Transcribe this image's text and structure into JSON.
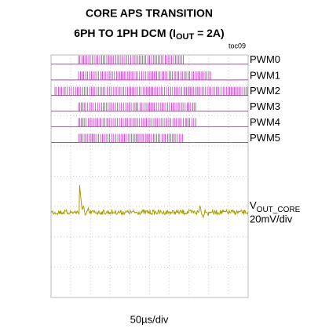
{
  "chart_data": {
    "type": "scope",
    "title": "CORE APS TRANSITION",
    "subtitle": {
      "pre": "6PH TO 1PH DCM (I",
      "sub": "OUT",
      "post": " = 2A)"
    },
    "figure_id": "toc09",
    "divisions": [
      10,
      8
    ],
    "pulse_color": "#cc33cc",
    "trace_color": "#a89f00",
    "channels": [
      {
        "name": "PWM0",
        "row": 0.15,
        "start": 1.4,
        "end": 6.72
      },
      {
        "name": "PWM1",
        "row": 0.67,
        "start": 1.4,
        "end": 8.12
      },
      {
        "name": "PWM2",
        "row": 1.18,
        "start": 0.2,
        "end": 10
      },
      {
        "name": "PWM3",
        "row": 1.7,
        "start": 1.4,
        "end": 7.4
      },
      {
        "name": "PWM4",
        "row": 2.21,
        "start": 1.4,
        "end": 7.4
      },
      {
        "name": "PWM5",
        "row": 2.73,
        "start": 1.4,
        "end": 6.72
      }
    ],
    "analog": {
      "name": "V",
      "sub": "OUT_CORE",
      "scale": "20mV/div",
      "offset": 5.19,
      "event": 1.45
    },
    "timebase": "50µs/div"
  }
}
